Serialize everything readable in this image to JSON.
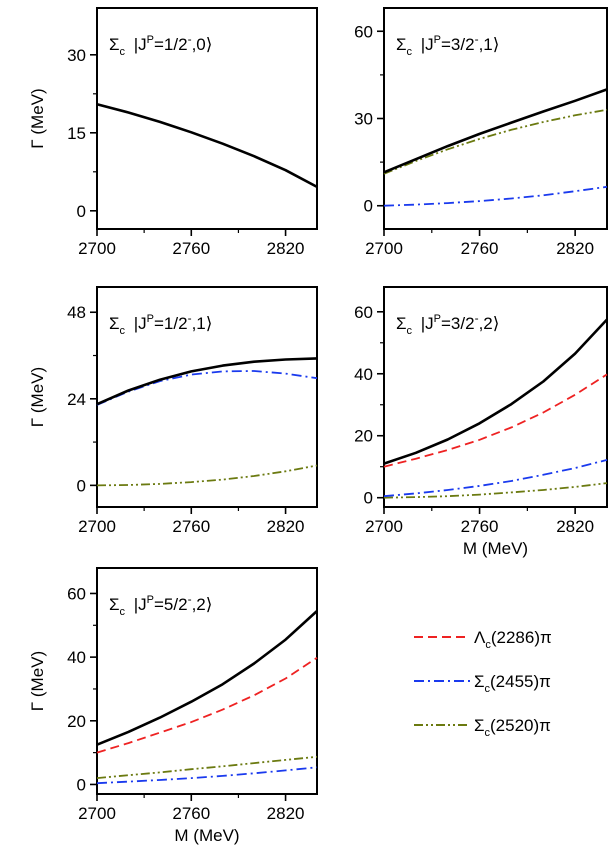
{
  "colors": {
    "total": "#000000",
    "lambda_c_2286_pi": "#ee2222",
    "sigma_c_2455_pi": "#1a3aee",
    "sigma_c_2520_pi": "#6b7a10"
  },
  "legend": {
    "placement": "bottom-right",
    "entries": [
      {
        "key": "lambda_c_2286_pi",
        "base": "Λ",
        "sub": "c",
        "rest": "(2286)π",
        "style": "dash"
      },
      {
        "key": "sigma_c_2455_pi",
        "base": "Σ",
        "sub": "c",
        "rest": "(2455)π",
        "style": "dashdot"
      },
      {
        "key": "sigma_c_2520_pi",
        "base": "Σ",
        "sub": "c",
        "rest": "(2520)π",
        "style": "dashdotdot"
      }
    ]
  },
  "chart_data": [
    {
      "type": "line",
      "panel": "top-left",
      "title": {
        "base": "Σ",
        "sub": "c",
        "mid": "|J",
        "sup_p": "P",
        "eq": "=1/2",
        "sup_minus": "-",
        "rest": ",0⟩"
      },
      "ylabel": "Γ (MeV)",
      "xlabel": "",
      "xlim": [
        2700,
        2840
      ],
      "ylim": [
        -3.5,
        39
      ],
      "xticks": [
        2700,
        2760,
        2820
      ],
      "yticks": [
        0,
        15,
        30
      ],
      "grid": false,
      "series": [
        {
          "key": "total",
          "style": "solid",
          "x": [
            2700,
            2720,
            2740,
            2760,
            2780,
            2800,
            2820,
            2840
          ],
          "y": [
            20.5,
            18.9,
            17.1,
            15.1,
            12.9,
            10.5,
            7.8,
            4.6
          ]
        }
      ]
    },
    {
      "type": "line",
      "panel": "top-right",
      "title": {
        "base": "Σ",
        "sub": "c",
        "mid": "|J",
        "sup_p": "P",
        "eq": "=3/2",
        "sup_minus": "-",
        "rest": ",1⟩"
      },
      "ylabel": "",
      "xlabel": "",
      "xlim": [
        2700,
        2840
      ],
      "ylim": [
        -8,
        68
      ],
      "xticks": [
        2700,
        2760,
        2820
      ],
      "yticks": [
        0,
        30,
        60
      ],
      "grid": false,
      "series": [
        {
          "key": "total",
          "style": "solid",
          "x": [
            2700,
            2720,
            2740,
            2760,
            2780,
            2800,
            2820,
            2840
          ],
          "y": [
            11.5,
            16,
            20.5,
            24.7,
            28.6,
            32.4,
            36.1,
            40
          ]
        },
        {
          "key": "sigma_c_2455_pi",
          "style": "dashdot",
          "x": [
            2700,
            2720,
            2740,
            2760,
            2780,
            2800,
            2820,
            2840
          ],
          "y": [
            0,
            0.4,
            0.9,
            1.6,
            2.5,
            3.6,
            5,
            6.5
          ]
        },
        {
          "key": "sigma_c_2520_pi",
          "style": "dashdotdot",
          "x": [
            2700,
            2720,
            2740,
            2760,
            2780,
            2800,
            2820,
            2840
          ],
          "y": [
            11,
            15.4,
            19.4,
            23,
            26.1,
            28.8,
            31.1,
            33
          ]
        }
      ]
    },
    {
      "type": "line",
      "panel": "middle-left",
      "title": {
        "base": "Σ",
        "sub": "c",
        "mid": "|J",
        "sup_p": "P",
        "eq": "=1/2",
        "sup_minus": "-",
        "rest": ",1⟩"
      },
      "ylabel": "Γ (MeV)",
      "xlabel": "",
      "xlim": [
        2700,
        2840
      ],
      "ylim": [
        -6,
        55
      ],
      "xticks": [
        2700,
        2760,
        2820
      ],
      "yticks": [
        0,
        24,
        48
      ],
      "grid": false,
      "series": [
        {
          "key": "total",
          "style": "solid",
          "x": [
            2700,
            2720,
            2740,
            2760,
            2780,
            2800,
            2820,
            2840
          ],
          "y": [
            22.5,
            26.3,
            29.3,
            31.6,
            33.2,
            34.3,
            34.9,
            35.2
          ]
        },
        {
          "key": "sigma_c_2455_pi",
          "style": "dashdot",
          "x": [
            2700,
            2720,
            2740,
            2760,
            2780,
            2800,
            2820,
            2840
          ],
          "y": [
            22.3,
            26,
            28.9,
            30.7,
            31.6,
            31.7,
            31,
            29.7
          ]
        },
        {
          "key": "sigma_c_2520_pi",
          "style": "dashdotdot",
          "x": [
            2700,
            2720,
            2740,
            2760,
            2780,
            2800,
            2820,
            2840
          ],
          "y": [
            0,
            0.1,
            0.4,
            0.9,
            1.6,
            2.6,
            3.9,
            5.5
          ]
        }
      ]
    },
    {
      "type": "line",
      "panel": "middle-right",
      "title": {
        "base": "Σ",
        "sub": "c",
        "mid": "|J",
        "sup_p": "P",
        "eq": "=3/2",
        "sup_minus": "-",
        "rest": ",2⟩"
      },
      "ylabel": "",
      "xlabel": "M (MeV)",
      "xlim": [
        2700,
        2840
      ],
      "ylim": [
        -3,
        68
      ],
      "xticks": [
        2700,
        2760,
        2820
      ],
      "yticks": [
        0,
        20,
        40,
        60
      ],
      "grid": false,
      "series": [
        {
          "key": "total",
          "style": "solid",
          "x": [
            2700,
            2720,
            2740,
            2760,
            2780,
            2800,
            2820,
            2840
          ],
          "y": [
            11,
            14.5,
            18.8,
            24,
            30.2,
            37.5,
            46.5,
            57.5
          ]
        },
        {
          "key": "lambda_c_2286_pi",
          "style": "dash",
          "x": [
            2700,
            2720,
            2740,
            2760,
            2780,
            2800,
            2820,
            2840
          ],
          "y": [
            10,
            12.6,
            15.4,
            18.7,
            22.7,
            27.5,
            33.2,
            39.8
          ]
        },
        {
          "key": "sigma_c_2455_pi",
          "style": "dashdot",
          "x": [
            2700,
            2720,
            2740,
            2760,
            2780,
            2800,
            2820,
            2840
          ],
          "y": [
            0.5,
            1.4,
            2.5,
            3.8,
            5.4,
            7.4,
            9.6,
            12.2
          ]
        },
        {
          "key": "sigma_c_2520_pi",
          "style": "dashdotdot",
          "x": [
            2700,
            2720,
            2740,
            2760,
            2780,
            2800,
            2820,
            2840
          ],
          "y": [
            0,
            0.2,
            0.5,
            1,
            1.7,
            2.5,
            3.5,
            4.7
          ]
        }
      ]
    },
    {
      "type": "line",
      "panel": "bottom-left",
      "title": {
        "base": "Σ",
        "sub": "c",
        "mid": "|J",
        "sup_p": "P",
        "eq": "=5/2",
        "sup_minus": "-",
        "rest": ",2⟩"
      },
      "ylabel": "Γ (MeV)",
      "xlabel": "M (MeV)",
      "xlim": [
        2700,
        2840
      ],
      "ylim": [
        -3,
        68
      ],
      "xticks": [
        2700,
        2760,
        2820
      ],
      "yticks": [
        0,
        20,
        40,
        60
      ],
      "grid": false,
      "series": [
        {
          "key": "total",
          "style": "solid",
          "x": [
            2700,
            2720,
            2740,
            2760,
            2780,
            2800,
            2820,
            2840
          ],
          "y": [
            12.5,
            16.5,
            21,
            26,
            31.5,
            38,
            45.5,
            54.5
          ]
        },
        {
          "key": "lambda_c_2286_pi",
          "style": "dash",
          "x": [
            2700,
            2720,
            2740,
            2760,
            2780,
            2800,
            2820,
            2840
          ],
          "y": [
            10,
            13,
            16.3,
            19.6,
            23.5,
            28,
            33.3,
            39.8
          ]
        },
        {
          "key": "sigma_c_2455_pi",
          "style": "dashdot",
          "x": [
            2700,
            2720,
            2740,
            2760,
            2780,
            2800,
            2820,
            2840
          ],
          "y": [
            0.4,
            0.9,
            1.4,
            2,
            2.7,
            3.5,
            4.4,
            5.4
          ]
        },
        {
          "key": "sigma_c_2520_pi",
          "style": "dashdotdot",
          "x": [
            2700,
            2720,
            2740,
            2760,
            2780,
            2800,
            2820,
            2840
          ],
          "y": [
            2,
            2.9,
            3.8,
            4.8,
            5.7,
            6.7,
            7.7,
            8.7
          ]
        }
      ]
    }
  ]
}
